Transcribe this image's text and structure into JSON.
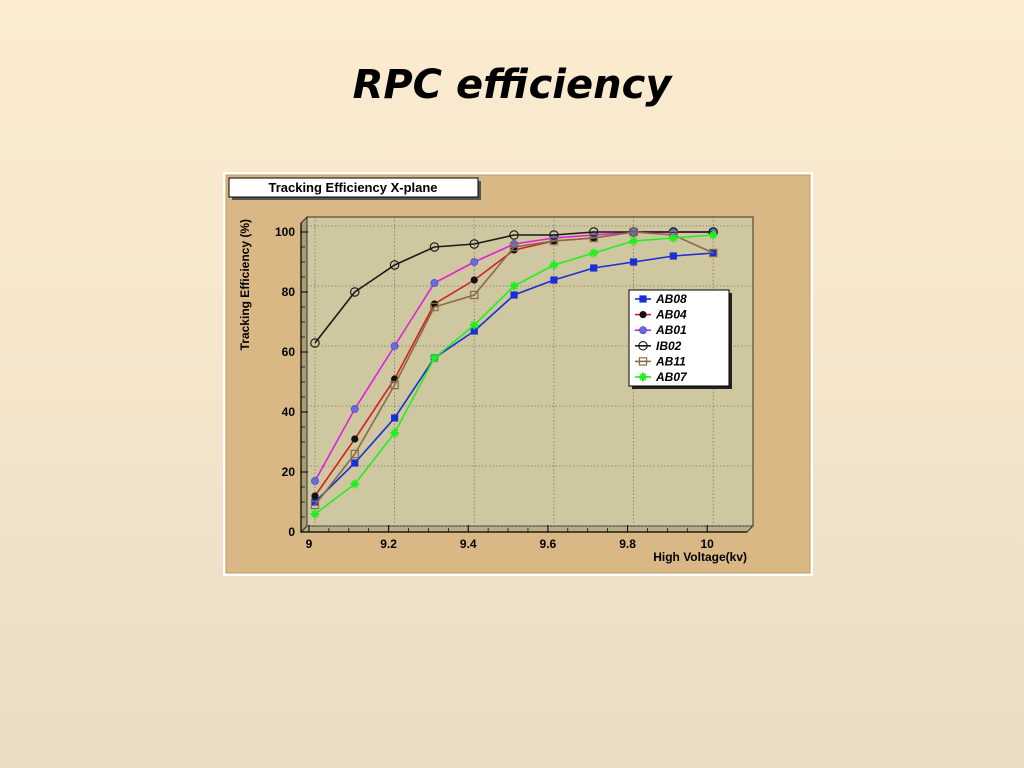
{
  "slide": {
    "title": "RPC efficiency"
  },
  "colors": {
    "frame_bg": "#d9b885",
    "plot_bg": "#cfc79f",
    "grid": "#7a7a6a",
    "shadow": "#8b7a4a"
  },
  "chart_data": {
    "type": "line",
    "title": "Tracking Efficiency X-plane",
    "xlabel": "High Voltage(kv)",
    "ylabel": "Tracking Efficiency (%)",
    "xlim": [
      8.98,
      10.1
    ],
    "ylim": [
      0,
      103
    ],
    "x_ticks": [
      9,
      9.2,
      9.4,
      9.6,
      9.8,
      10
    ],
    "x_tick_labels": [
      "9",
      "9.2",
      "9.4",
      "9.6",
      "9.8",
      "10"
    ],
    "y_ticks": [
      0,
      20,
      40,
      60,
      80,
      100
    ],
    "y_tick_labels": [
      "0",
      "20",
      "40",
      "60",
      "80",
      "100"
    ],
    "grid": true,
    "legend_position": "right",
    "x": [
      9.0,
      9.1,
      9.2,
      9.3,
      9.4,
      9.5,
      9.6,
      9.7,
      9.8,
      9.9,
      10.0
    ],
    "series": [
      {
        "name": "AB08",
        "color": "#1a2fd6",
        "marker": "square-filled",
        "values": [
          8,
          21,
          36,
          56,
          65,
          77,
          82,
          86,
          88,
          90,
          91
        ]
      },
      {
        "name": "AB04",
        "color": "#d42020",
        "marker": "circle-filled-black",
        "values": [
          10,
          29,
          49,
          74,
          82,
          92,
          95,
          96,
          98,
          98,
          98
        ]
      },
      {
        "name": "AB01",
        "color": "#e020d8",
        "marker": "circle-filled-blue",
        "values": [
          15,
          39,
          60,
          81,
          88,
          94,
          96,
          97,
          98,
          98,
          98
        ]
      },
      {
        "name": "IB02",
        "color": "#1a1a1a",
        "marker": "circle-open",
        "values": [
          61,
          78,
          87,
          93,
          94,
          97,
          97,
          98,
          98,
          98,
          98
        ]
      },
      {
        "name": "AB11",
        "color": "#8a6a4a",
        "marker": "square-open",
        "values": [
          7,
          24,
          47,
          73,
          77,
          93,
          95,
          96,
          98,
          97,
          91
        ]
      },
      {
        "name": "AB07",
        "color": "#22ee22",
        "marker": "star",
        "values": [
          4,
          14,
          31,
          56,
          67,
          80,
          87,
          91,
          95,
          96,
          97
        ]
      }
    ]
  }
}
